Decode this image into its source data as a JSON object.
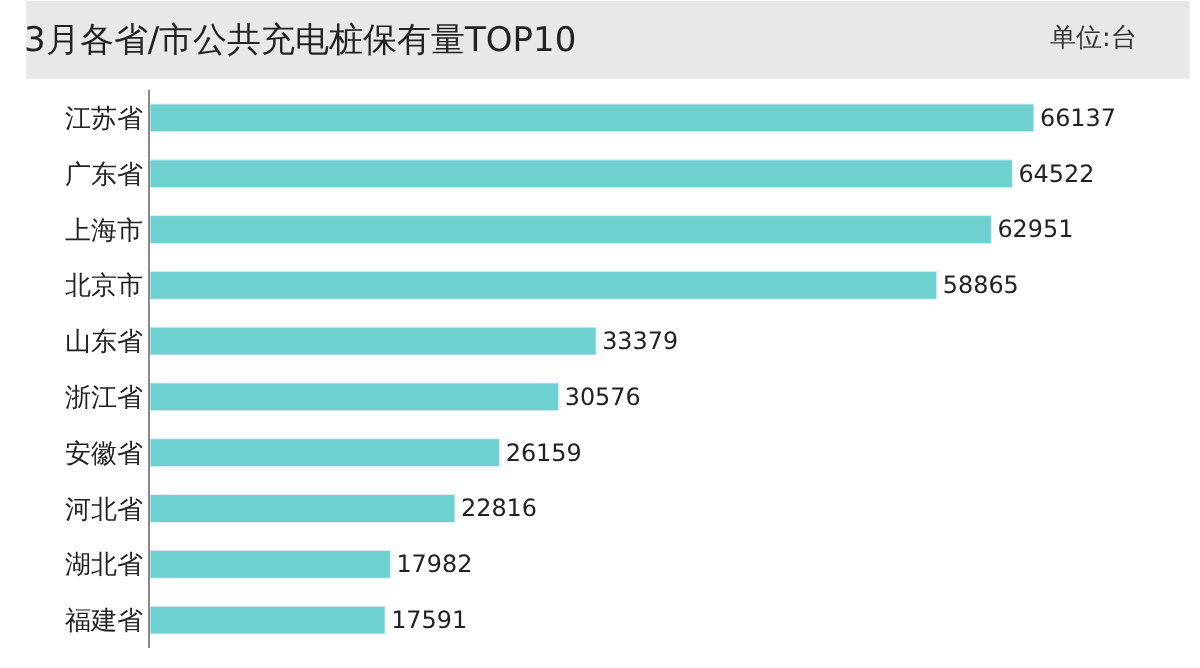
{
  "chart_data": {
    "type": "bar",
    "orientation": "horizontal",
    "title": "3月各省/市公共充电桩保有量TOP10",
    "annotations": [
      "单位:台"
    ],
    "categories": [
      "江苏省",
      "广东省",
      "上海市",
      "北京市",
      "山东省",
      "浙江省",
      "安徽省",
      "河北省",
      "湖北省",
      "福建省"
    ],
    "values": [
      66137,
      64522,
      62951,
      58865,
      33379,
      30576,
      26159,
      22816,
      17982,
      17591
    ],
    "color": "#6fd0d0",
    "data_labels": true
  }
}
